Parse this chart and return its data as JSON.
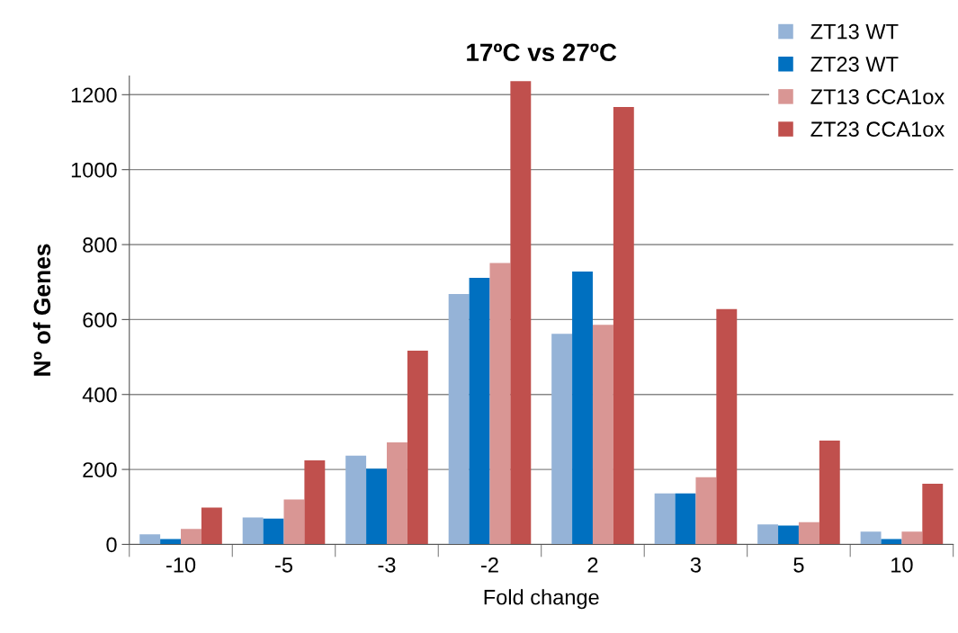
{
  "chart_data": {
    "type": "bar",
    "title": "17ºC vs 27ºC",
    "xlabel": "Fold change",
    "ylabel": "Nº of Genes",
    "categories": [
      "-10",
      "-5",
      "-3",
      "-2",
      "2",
      "3",
      "5",
      "10"
    ],
    "series": [
      {
        "name": "ZT13 WT",
        "color": "#95b3d7",
        "values": [
          27,
          72,
          237,
          668,
          562,
          136,
          53,
          34
        ]
      },
      {
        "name": "ZT23 WT",
        "color": "#0070c0",
        "values": [
          14,
          69,
          202,
          711,
          728,
          136,
          50,
          14
        ]
      },
      {
        "name": "ZT13 CCA1ox",
        "color": "#d99694",
        "values": [
          41,
          120,
          272,
          751,
          586,
          179,
          59,
          34
        ]
      },
      {
        "name": "ZT23 CCA1ox",
        "color": "#c0504d",
        "values": [
          98,
          224,
          517,
          1236,
          1167,
          628,
          277,
          162
        ]
      }
    ],
    "ylim": [
      0,
      1250
    ],
    "yticks": [
      0,
      200,
      400,
      600,
      800,
      1000,
      1200
    ],
    "grid": "y",
    "legend": "top right"
  }
}
